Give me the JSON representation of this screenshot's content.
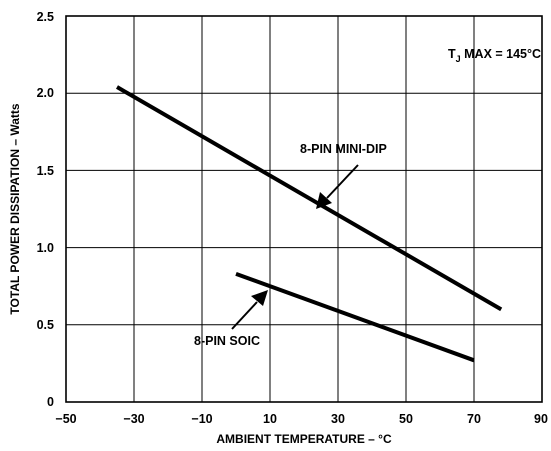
{
  "chart_data": {
    "type": "line",
    "xlabel": "AMBIENT TEMPERATURE – °C",
    "ylabel": "TOTAL POWER DISSIPATION – Watts",
    "xlim": [
      -50,
      90
    ],
    "ylim": [
      0,
      2.5
    ],
    "x_ticks": [
      "−50",
      "−30",
      "−10",
      "10",
      "30",
      "50",
      "70",
      "90"
    ],
    "y_ticks": [
      "0",
      "0.5",
      "1.0",
      "1.5",
      "2.0",
      "2.5"
    ],
    "grid": true,
    "condition": {
      "prefix": "T",
      "subscript": "J",
      "suffix": " MAX = 145°C"
    },
    "series": [
      {
        "name": "8-PIN MINI-DIP",
        "x": [
          -35,
          78
        ],
        "y": [
          2.04,
          0.6
        ]
      },
      {
        "name": "8-PIN SOIC",
        "x": [
          0,
          70
        ],
        "y": [
          0.83,
          0.27
        ]
      }
    ]
  }
}
